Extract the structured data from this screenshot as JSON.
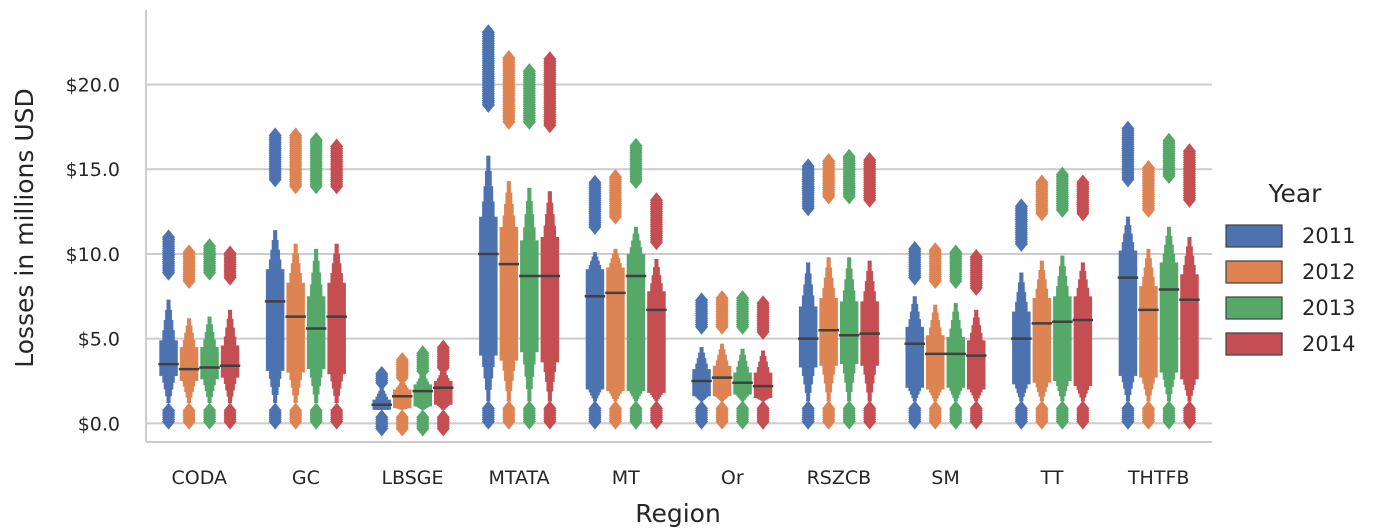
{
  "chart_data": {
    "type": "boxen",
    "title": "",
    "xlabel": "Region",
    "ylabel": "Losses in millions USD",
    "ylim": [
      -1.1,
      24.4
    ],
    "yticks": [
      0,
      5,
      10,
      15,
      20
    ],
    "ytick_labels": [
      "$0.0",
      "$5.0",
      "$10.0",
      "$15.0",
      "$20.0"
    ],
    "grid": "horizontal",
    "legend": {
      "title": "Year",
      "placement": "right"
    },
    "categories": [
      "CODA",
      "GC",
      "LBSGE",
      "MTATA",
      "MT",
      "Or",
      "RSZCB",
      "SM",
      "TT",
      "THTFB"
    ],
    "series": [
      {
        "name": "2011",
        "color": "#4c72b0"
      },
      {
        "name": "2012",
        "color": "#dd8452"
      },
      {
        "name": "2013",
        "color": "#55a868"
      },
      {
        "name": "2014",
        "color": "#c44e52"
      }
    ],
    "medians": [
      [
        3.5,
        3.2,
        3.3,
        3.4
      ],
      [
        7.2,
        6.3,
        5.6,
        6.3
      ],
      [
        1.1,
        1.6,
        1.9,
        2.1
      ],
      [
        10.0,
        9.4,
        8.7,
        8.7
      ],
      [
        7.5,
        7.7,
        8.7,
        6.7
      ],
      [
        2.5,
        2.7,
        2.4,
        2.2
      ],
      [
        5.0,
        5.5,
        5.2,
        5.3
      ],
      [
        4.7,
        4.1,
        4.1,
        4.0
      ],
      [
        5.0,
        5.9,
        6.0,
        6.1
      ],
      [
        8.6,
        6.7,
        7.9,
        7.3
      ]
    ],
    "box_low": [
      [
        2.8,
        2.5,
        2.6,
        2.7
      ],
      [
        3.1,
        3.0,
        3.2,
        2.9
      ],
      [
        0.8,
        0.9,
        1.0,
        1.1
      ],
      [
        4.0,
        3.7,
        4.2,
        3.6
      ],
      [
        2.0,
        1.9,
        1.9,
        1.8
      ],
      [
        1.6,
        1.6,
        1.7,
        1.5
      ],
      [
        3.3,
        3.4,
        3.5,
        3.4
      ],
      [
        2.1,
        2.0,
        2.1,
        2.0
      ],
      [
        2.3,
        2.4,
        2.5,
        2.2
      ],
      [
        2.8,
        2.7,
        3.0,
        2.6
      ]
    ],
    "box_high": [
      [
        4.9,
        4.5,
        4.5,
        4.6
      ],
      [
        9.1,
        8.3,
        7.5,
        8.3
      ],
      [
        1.4,
        2.0,
        2.3,
        2.5
      ],
      [
        12.2,
        11.6,
        10.8,
        11.0
      ],
      [
        9.1,
        9.2,
        10.0,
        7.8
      ],
      [
        3.2,
        3.4,
        3.0,
        3.0
      ],
      [
        6.9,
        7.4,
        7.2,
        7.2
      ],
      [
        5.7,
        5.2,
        5.1,
        4.9
      ],
      [
        6.6,
        7.4,
        7.5,
        7.5
      ],
      [
        10.2,
        8.1,
        9.5,
        8.8
      ]
    ],
    "whisker_high": [
      [
        7.3,
        6.2,
        6.3,
        6.7
      ],
      [
        11.4,
        10.6,
        10.3,
        10.6
      ],
      [
        2.1,
        2.5,
        3.0,
        3.2
      ],
      [
        15.8,
        14.3,
        13.9,
        13.7
      ],
      [
        10.1,
        10.3,
        11.6,
        9.7
      ],
      [
        4.5,
        4.7,
        4.4,
        4.3
      ],
      [
        9.5,
        9.8,
        9.8,
        9.6
      ],
      [
        7.5,
        7.0,
        7.1,
        6.7
      ],
      [
        8.9,
        9.6,
        9.9,
        9.5
      ],
      [
        12.2,
        10.3,
        11.6,
        11.0
      ]
    ],
    "outliers_low": [
      [
        0.1,
        0.8
      ],
      [
        0.1,
        0.8
      ],
      [
        -0.3,
        0.4
      ],
      [
        0.1,
        0.9
      ],
      [
        0.1,
        0.9
      ],
      [
        0.1,
        0.9
      ],
      [
        0.1,
        0.9
      ],
      [
        0.1,
        0.9
      ],
      [
        0.1,
        0.9
      ],
      [
        0.1,
        0.9
      ]
    ],
    "outliers_high": [
      [
        [
          8.9,
          11.0
        ],
        [
          8.4,
          10.2
        ],
        [
          8.9,
          10.5
        ],
        [
          8.6,
          10.1
        ]
      ],
      [
        [
          14.4,
          17.1
        ],
        [
          14.0,
          17.1
        ],
        [
          14.0,
          16.8
        ],
        [
          14.0,
          16.4
        ]
      ],
      [
        [
          2.4,
          3.0
        ],
        [
          2.7,
          3.8
        ],
        [
          3.1,
          4.2
        ],
        [
          3.3,
          4.5
        ]
      ],
      [
        [
          18.8,
          23.1
        ],
        [
          17.8,
          21.6
        ],
        [
          17.8,
          20.9
        ],
        [
          17.6,
          21.6
        ]
      ],
      [
        [
          11.6,
          14.3
        ],
        [
          12.2,
          14.6
        ],
        [
          14.3,
          16.4
        ],
        [
          10.7,
          13.2
        ]
      ],
      [
        [
          5.7,
          7.3
        ],
        [
          5.7,
          7.4
        ],
        [
          5.7,
          7.4
        ],
        [
          5.4,
          7.1
        ]
      ],
      [
        [
          12.7,
          15.2
        ],
        [
          13.4,
          15.6
        ],
        [
          13.4,
          15.8
        ],
        [
          13.2,
          15.6
        ]
      ],
      [
        [
          8.6,
          10.4
        ],
        [
          8.4,
          10.3
        ],
        [
          8.4,
          10.2
        ],
        [
          8.0,
          9.9
        ]
      ],
      [
        [
          10.6,
          12.9
        ],
        [
          12.4,
          14.3
        ],
        [
          12.6,
          14.7
        ],
        [
          12.4,
          14.3
        ]
      ],
      [
        [
          14.4,
          17.5
        ],
        [
          12.6,
          15.1
        ],
        [
          14.6,
          16.8
        ],
        [
          13.2,
          16.1
        ]
      ]
    ]
  }
}
